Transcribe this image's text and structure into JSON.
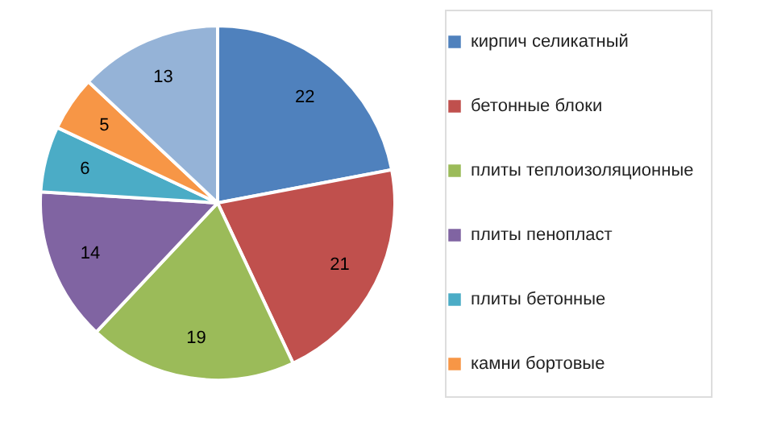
{
  "chart_data": {
    "type": "pie",
    "categories": [
      "кирпич  селикатный",
      "бетонные блоки",
      "плиты теплоизоляционные",
      "плиты пенопласт",
      "плиты бетонные",
      "камни бортовые",
      null
    ],
    "values": [
      22,
      21,
      19,
      14,
      6,
      5,
      13
    ],
    "colors": [
      "#4f81bd",
      "#c0504d",
      "#9bbb59",
      "#8064a2",
      "#4bacc6",
      "#f79646",
      "#95b3d7"
    ],
    "data_labels": true,
    "legend": "right"
  }
}
